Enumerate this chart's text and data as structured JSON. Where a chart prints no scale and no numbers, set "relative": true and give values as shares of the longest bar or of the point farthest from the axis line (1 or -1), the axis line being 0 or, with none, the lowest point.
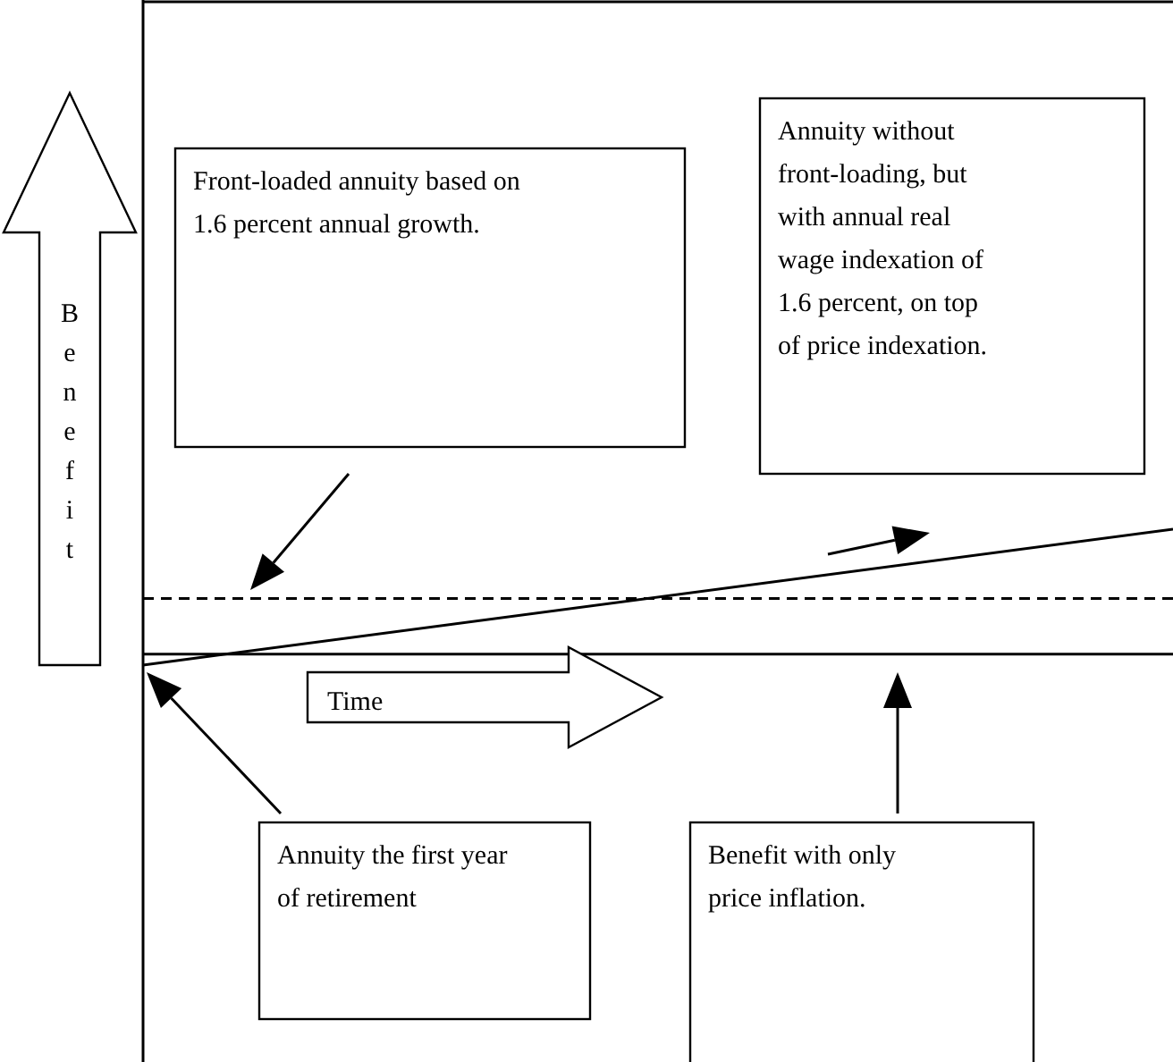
{
  "chart_data": {
    "type": "line",
    "relative": true,
    "xlabel": "Time",
    "ylabel": "Benefit",
    "categories": [
      null,
      null
    ],
    "series": [
      {
        "color": "#000000",
        "values": [
          0,
          1
        ],
        "line_style": "solid"
      },
      {
        "color": "#000000",
        "values": [
          0.49,
          0.49
        ],
        "line_style": "dashed"
      },
      {
        "color": "#000000",
        "values": [
          0.08,
          0.08
        ],
        "line_style": "solid"
      }
    ],
    "annotations": [
      "Front-loaded annuity based on 1.6 percent annual growth.",
      "Annuity without front-loading, but with annual real wage indexation of 1.6 percent, on top of price indexation.",
      "Annuity the first year of retirement",
      "Benefit with only price inflation."
    ]
  }
}
